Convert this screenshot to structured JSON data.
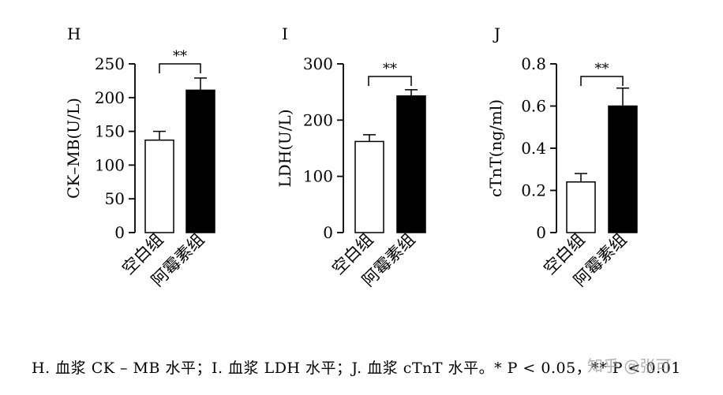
{
  "chart_data": [
    {
      "type": "bar",
      "panel_label": "H",
      "ylabel": "CK–MB(U/L)",
      "ylim": [
        0,
        250
      ],
      "yticks": [
        0,
        50,
        100,
        150,
        200,
        250
      ],
      "categories": [
        "空白组",
        "阿霉素组"
      ],
      "values": [
        137,
        211
      ],
      "errors": [
        13,
        18
      ],
      "fills": [
        "#ffffff",
        "#000000"
      ],
      "significance": "**"
    },
    {
      "type": "bar",
      "panel_label": "I",
      "ylabel": "LDH(U/L)",
      "ylim": [
        0,
        300
      ],
      "yticks": [
        0,
        100,
        200,
        300
      ],
      "categories": [
        "空白组",
        "阿霉素组"
      ],
      "values": [
        162,
        243
      ],
      "errors": [
        12,
        11
      ],
      "fills": [
        "#ffffff",
        "#000000"
      ],
      "significance": "**"
    },
    {
      "type": "bar",
      "panel_label": "J",
      "ylabel": "cTnT(ng/ml)",
      "ylim": [
        0,
        0.8
      ],
      "yticks": [
        0,
        0.2,
        0.4,
        0.6,
        0.8
      ],
      "categories": [
        "空白组",
        "阿霉素组"
      ],
      "values": [
        0.24,
        0.6
      ],
      "errors": [
        0.04,
        0.085
      ],
      "fills": [
        "#ffffff",
        "#000000"
      ],
      "significance": "**"
    }
  ],
  "caption": "H. 血浆 CK – MB 水平；I. 血浆 LDH 水平；J. 血浆 cTnT 水平。* P < 0.05，** P < 0.01",
  "watermark": "知乎 @张可"
}
